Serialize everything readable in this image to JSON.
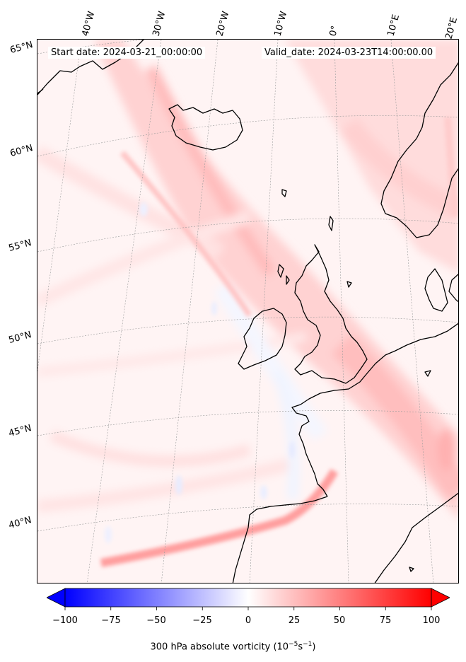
{
  "map": {
    "start_date": "Start date: 2024-03-21_00:00:00",
    "valid_date": "Valid_date: 2024-03-23T14:00:00.00",
    "lon_labels": [
      "40°W",
      "30°W",
      "20°W",
      "10°W",
      "0°",
      "10°E",
      "20°E"
    ],
    "lat_labels": [
      "65°N",
      "60°N",
      "55°N",
      "50°N",
      "45°N",
      "40°N"
    ]
  },
  "colorbar": {
    "ticks": [
      "−100",
      "−75",
      "−50",
      "−25",
      "0",
      "25",
      "50",
      "75",
      "100"
    ],
    "min": -100,
    "max": 100,
    "title_main": "300 hPa absolute vorticity (10",
    "title_exp1": "−5",
    "title_mid": "s",
    "title_exp2": "−1",
    "title_end": ")",
    "colors": {
      "negative": "#0000ff",
      "zero": "#ffffff",
      "positive": "#ff0000"
    }
  }
}
